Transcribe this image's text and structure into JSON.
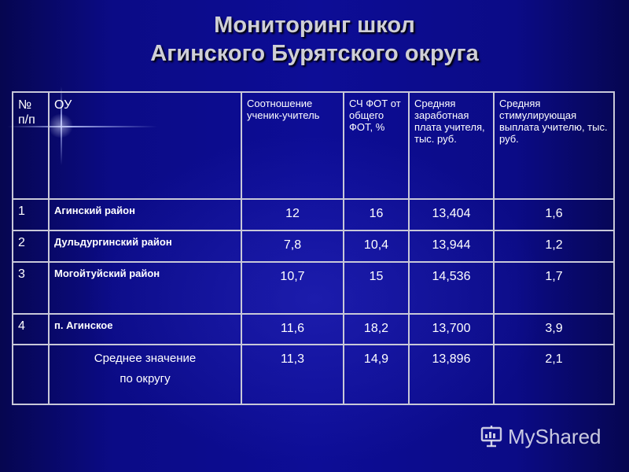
{
  "title": {
    "line1": "Мониторинг школ",
    "line2": "Агинского Бурятского округа"
  },
  "table": {
    "headers": {
      "num_line1": "№",
      "num_line2": "п/п",
      "org": "ОУ",
      "ratio": "Соотношение ученик-учитель",
      "fot": "СЧ ФОТ от общего ФОТ, %",
      "salary": "Средняя заработная плата учителя, тыс. руб.",
      "bonus": "Средняя стимулирующая выплата учителю, тыс. руб."
    },
    "rows": [
      {
        "num": "1",
        "org": "Агинский район",
        "ratio": "12",
        "fot": "16",
        "salary": "13,404",
        "bonus": "1,6"
      },
      {
        "num": "2",
        "org": "Дульдургинский район",
        "ratio": "7,8",
        "fot": "10,4",
        "salary": "13,944",
        "bonus": "1,2"
      },
      {
        "num": "3",
        "org": "Могойтуйский район",
        "ratio": "10,7",
        "fot": "15",
        "salary": "14,536",
        "bonus": "1,7"
      },
      {
        "num": "4",
        "org": "п. Агинское",
        "ratio": "11,6",
        "fot": "18,2",
        "salary": "13,700",
        "bonus": "3,9"
      }
    ],
    "average": {
      "label_line1": "Среднее значение",
      "label_line2": "по округу",
      "ratio": "11,3",
      "fot": "14,9",
      "salary": "13,896",
      "bonus": "2,1"
    }
  },
  "watermark": {
    "text": "MyShared",
    "icon": "presentation-board-icon"
  }
}
